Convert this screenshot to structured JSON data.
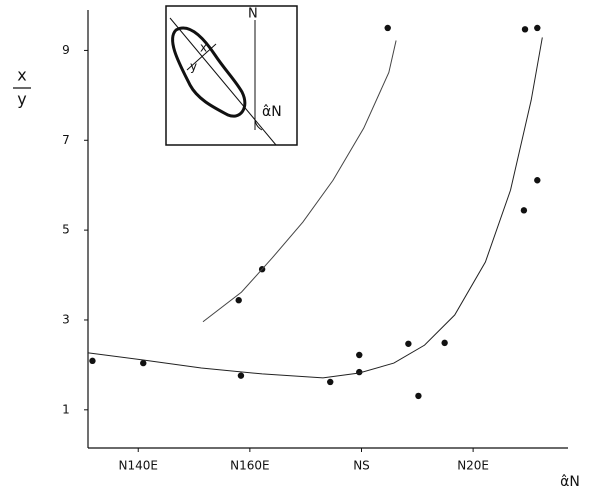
{
  "chart_data": {
    "type": "scatter",
    "y_label": {
      "numerator": "x",
      "denominator": "y"
    },
    "x_label": "α̂N",
    "xlim": [
      -49,
      37
    ],
    "ylim": [
      0.15,
      9.9
    ],
    "xticks": [
      {
        "value": -40,
        "label": "N140E"
      },
      {
        "value": -20,
        "label": "N160E"
      },
      {
        "value": 0,
        "label": "NS"
      },
      {
        "value": 20,
        "label": "N20E"
      }
    ],
    "yticks": [
      1,
      3,
      5,
      7,
      9
    ],
    "series": [
      {
        "style": "points",
        "color": "#111111",
        "x": [
          -48.2,
          -39.1,
          -21.6,
          -5.6,
          -0.4,
          -0.4,
          8.4,
          10.2,
          14.9,
          29.1,
          31.5,
          29.3,
          31.5
        ],
        "values": [
          2.09,
          2.04,
          1.76,
          1.62,
          2.22,
          1.84,
          2.47,
          1.31,
          2.49,
          5.44,
          6.11,
          9.47,
          9.5
        ]
      },
      {
        "style": "points",
        "color": "#111111",
        "x": [
          -22,
          -17.8,
          4.7
        ],
        "values": [
          3.44,
          4.13,
          9.5
        ]
      },
      {
        "style": "line",
        "color": "#222222",
        "x": [
          -49.1,
          -39.1,
          -28.7,
          -17.8,
          -6.9,
          -0.4,
          5.8,
          11.3,
          16.7,
          22.2,
          26.7,
          30.4,
          32.4
        ],
        "values": [
          2.27,
          2.11,
          1.93,
          1.8,
          1.71,
          1.82,
          2.04,
          2.44,
          3.11,
          4.29,
          5.89,
          7.89,
          9.29
        ]
      },
      {
        "style": "line",
        "color": "#444444",
        "x": [
          -28.4,
          -21.5,
          -16,
          -10.5,
          -5.1,
          0.4,
          4.9,
          6.2
        ],
        "values": [
          2.96,
          3.62,
          4.38,
          5.18,
          6.11,
          7.27,
          8.51,
          9.22
        ]
      }
    ],
    "inset": {
      "labels": [
        "x",
        "y",
        "N",
        "α̂N"
      ]
    }
  }
}
